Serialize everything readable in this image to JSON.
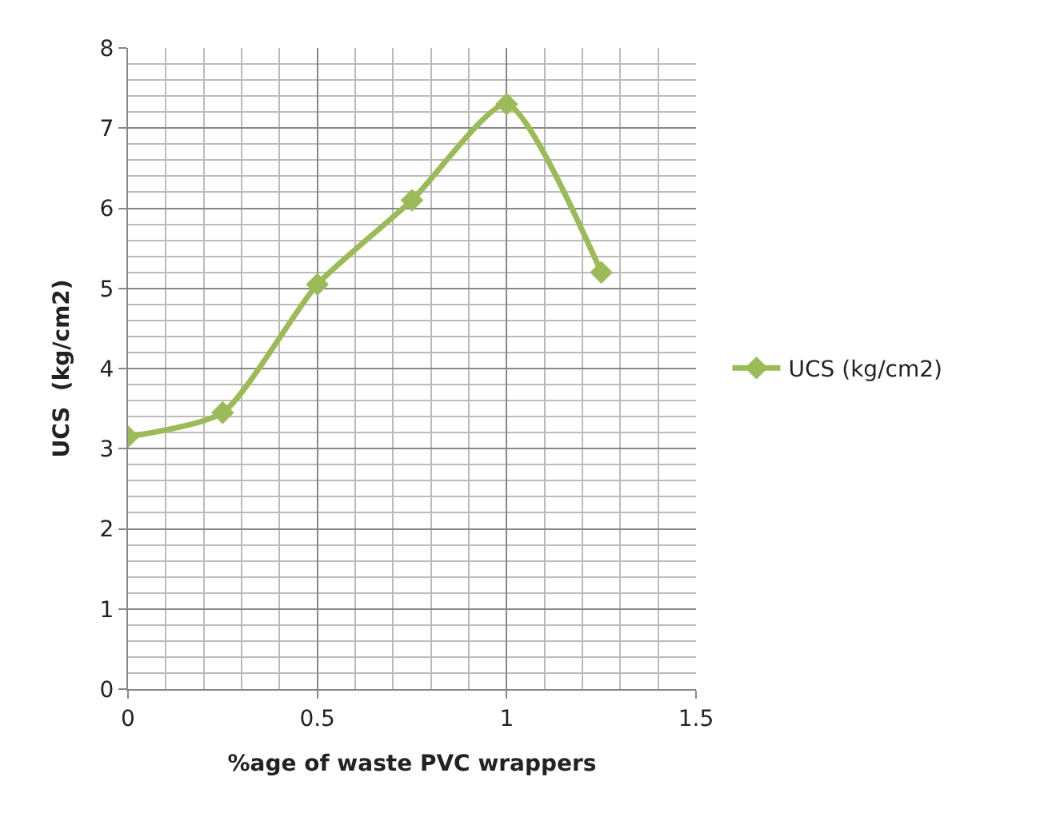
{
  "chart_data": {
    "type": "line",
    "xlabel": "%age of waste PVC wrappers",
    "ylabel": "UCS  (kg/cm2)",
    "x": [
      0,
      0.25,
      0.5,
      0.75,
      1,
      1.25
    ],
    "series": [
      {
        "name": "UCS (kg/cm2)",
        "color": "#9bbb59",
        "values": [
          3.15,
          3.45,
          5.05,
          6.1,
          7.3,
          5.2
        ]
      }
    ],
    "xlim": [
      0,
      1.5
    ],
    "xticks": [
      0,
      0.5,
      1,
      1.5
    ],
    "ylim": [
      0,
      8
    ],
    "yticks": [
      0,
      1,
      2,
      3,
      4,
      5,
      6,
      7,
      8
    ],
    "grid": true,
    "legend": "right",
    "marker": "diamond",
    "line_style": "solid"
  }
}
